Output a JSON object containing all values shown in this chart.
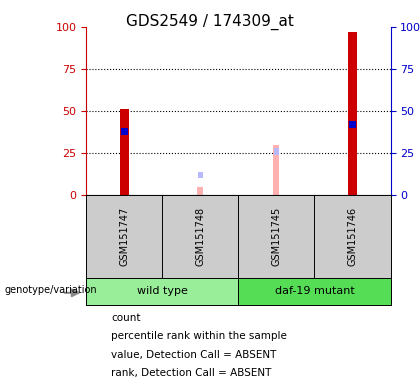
{
  "title": "GDS2549 / 174309_at",
  "samples": [
    "GSM151747",
    "GSM151748",
    "GSM151745",
    "GSM151746"
  ],
  "count_values": [
    51,
    0,
    0,
    97
  ],
  "percentile_values": [
    38,
    0,
    0,
    42
  ],
  "absent_value_values": [
    0,
    5,
    30,
    0
  ],
  "absent_rank_values": [
    0,
    12,
    26,
    0
  ],
  "present": [
    true,
    false,
    false,
    true
  ],
  "bar_width": 0.12,
  "absent_bar_width": 0.08,
  "ylim": [
    0,
    100
  ],
  "left_tick_color": "#cc0000",
  "right_tick_color": "#0000cc",
  "bg_color": "#ffffff",
  "sample_bg_color": "#cccccc",
  "group1_color": "#99ee99",
  "group2_color": "#55dd55",
  "group1_label": "wild type",
  "group2_label": "daf-19 mutant",
  "geno_label": "genotype/variation",
  "legend_items": [
    {
      "label": "count",
      "color": "#cc0000"
    },
    {
      "label": "percentile rank within the sample",
      "color": "#0000cc"
    },
    {
      "label": "value, Detection Call = ABSENT",
      "color": "#ffb0b0"
    },
    {
      "label": "rank, Detection Call = ABSENT",
      "color": "#b8b8ff"
    }
  ],
  "yticks": [
    0,
    25,
    50,
    75,
    100
  ],
  "grid_lines": [
    25,
    50,
    75
  ]
}
